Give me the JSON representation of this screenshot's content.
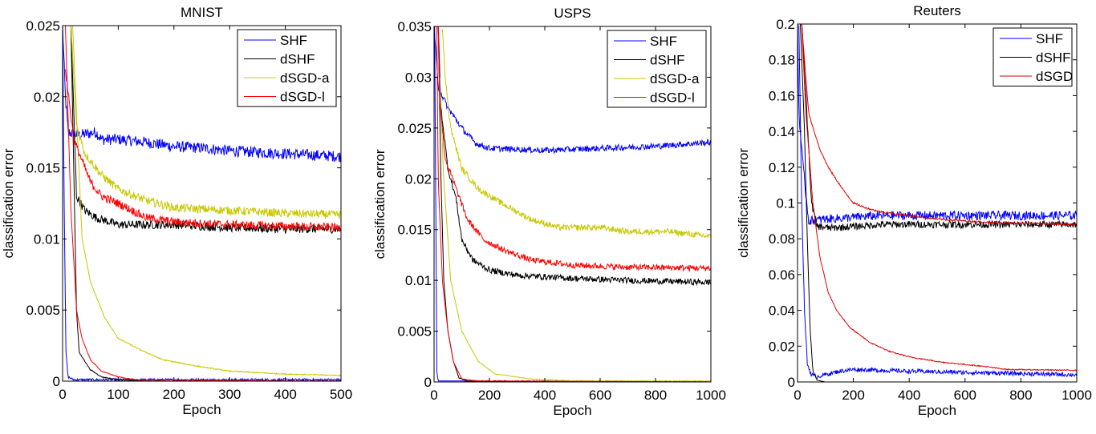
{
  "chart_data": [
    {
      "type": "line",
      "title": "MNIST",
      "xlabel": "Epoch",
      "ylabel": "classification error",
      "xlim": [
        0,
        500
      ],
      "ylim": [
        0,
        0.025
      ],
      "xticks": [
        0,
        100,
        200,
        300,
        400,
        500
      ],
      "xtick_labels": [
        "0",
        "100",
        "200",
        "300",
        "400",
        "500"
      ],
      "yticks": [
        0,
        0.005,
        0.01,
        0.015,
        0.02,
        0.025
      ],
      "ytick_labels": [
        "0",
        "0.005",
        "0.01",
        "0.015",
        "0.02",
        "0.025"
      ],
      "legend_position": "top-right",
      "series": [
        {
          "name": "SHF",
          "color": "#0000ff",
          "curves": [
            {
              "kind": "test",
              "noise": 0.0004,
              "x": [
                0,
                5,
                10,
                30,
                60,
                70,
                100,
                150,
                200,
                250,
                300,
                400,
                500
              ],
              "y": [
                0.025,
                0.02,
                0.0175,
                0.0173,
                0.0175,
                0.017,
                0.017,
                0.0168,
                0.0165,
                0.0164,
                0.0162,
                0.016,
                0.0158
              ]
            },
            {
              "kind": "train",
              "noise": 8e-05,
              "x": [
                0,
                3,
                6,
                10,
                20,
                500
              ],
              "y": [
                0.025,
                0.012,
                0.002,
                0.0003,
                0.0001,
                0.0001
              ]
            }
          ]
        },
        {
          "name": "dSHF",
          "color": "#000000",
          "curves": [
            {
              "kind": "test",
              "noise": 0.0003,
              "x": [
                15,
                25,
                40,
                60,
                100,
                200,
                300,
                400,
                500
              ],
              "y": [
                0.025,
                0.013,
                0.012,
                0.0115,
                0.011,
                0.011,
                0.0108,
                0.0107,
                0.0107
              ]
            },
            {
              "kind": "train",
              "noise": 3e-05,
              "x": [
                15,
                25,
                30,
                50,
                70,
                100,
                150,
                500
              ],
              "y": [
                0.025,
                0.005,
                0.002,
                0.0008,
                0.0003,
                0.0001,
                0.0,
                0.0
              ]
            }
          ]
        },
        {
          "name": "dSGD-a",
          "color": "#c8c800",
          "curves": [
            {
              "kind": "test",
              "noise": 0.0003,
              "x": [
                15,
                25,
                40,
                70,
                100,
                150,
                200,
                300,
                400,
                500
              ],
              "y": [
                0.025,
                0.018,
                0.016,
                0.0145,
                0.0135,
                0.0127,
                0.0122,
                0.012,
                0.0118,
                0.0117
              ]
            },
            {
              "kind": "train",
              "noise": 4e-05,
              "x": [
                18,
                35,
                50,
                75,
                100,
                140,
                180,
                250,
                300,
                400,
                500
              ],
              "y": [
                0.025,
                0.01,
                0.007,
                0.0045,
                0.003,
                0.0022,
                0.0015,
                0.001,
                0.0007,
                0.0005,
                0.0004
              ]
            }
          ]
        },
        {
          "name": "dSGD-l",
          "color": "#ff0000",
          "curves": [
            {
              "kind": "test",
              "noise": 0.0003,
              "x": [
                5,
                20,
                35,
                50,
                70,
                100,
                150,
                200,
                300,
                400,
                500
              ],
              "y": [
                0.022,
                0.017,
                0.0155,
                0.014,
                0.013,
                0.0125,
                0.0115,
                0.0112,
                0.011,
                0.0109,
                0.0108
              ]
            },
            {
              "kind": "train",
              "noise": 3e-05,
              "x": [
                5,
                15,
                25,
                35,
                50,
                70,
                100,
                130,
                500
              ],
              "y": [
                0.025,
                0.012,
                0.005,
                0.003,
                0.0015,
                0.0007,
                0.0003,
                0.0001,
                0.0
              ]
            }
          ]
        }
      ]
    },
    {
      "type": "line",
      "title": "USPS",
      "xlabel": "Epoch",
      "ylabel": "classification error",
      "xlim": [
        0,
        1000
      ],
      "ylim": [
        0,
        0.035
      ],
      "xticks": [
        0,
        200,
        400,
        600,
        800,
        1000
      ],
      "xtick_labels": [
        "0",
        "200",
        "400",
        "600",
        "800",
        "1000"
      ],
      "yticks": [
        0,
        0.005,
        0.01,
        0.015,
        0.02,
        0.025,
        0.03,
        0.035
      ],
      "ytick_labels": [
        "0",
        "0.005",
        "0.01",
        "0.015",
        "0.02",
        "0.025",
        "0.03",
        "0.035"
      ],
      "legend_position": "top-right",
      "series": [
        {
          "name": "SHF",
          "color": "#0000ff",
          "curves": [
            {
              "kind": "test",
              "noise": 0.0003,
              "x": [
                0,
                15,
                50,
                100,
                150,
                200,
                400,
                600,
                800,
                1000
              ],
              "y": [
                0.035,
                0.029,
                0.027,
                0.025,
                0.0235,
                0.023,
                0.0228,
                0.023,
                0.0232,
                0.0236
              ]
            },
            {
              "kind": "train",
              "noise": 0.0,
              "x": [
                2,
                10,
                15,
                1000
              ],
              "y": [
                0.035,
                0.001,
                0.0001,
                0.0
              ]
            }
          ]
        },
        {
          "name": "dSHF",
          "color": "#000000",
          "curves": [
            {
              "kind": "test",
              "noise": 0.0003,
              "x": [
                15,
                25,
                50,
                80,
                100,
                140,
                200,
                300,
                500,
                700,
                1000
              ],
              "y": [
                0.035,
                0.027,
                0.021,
                0.018,
                0.014,
                0.012,
                0.011,
                0.0105,
                0.0102,
                0.01,
                0.0098
              ]
            },
            {
              "kind": "train",
              "noise": 5e-05,
              "x": [
                15,
                25,
                35,
                50,
                70,
                90,
                120,
                1000
              ],
              "y": [
                0.035,
                0.02,
                0.01,
                0.005,
                0.002,
                0.0004,
                0.0001,
                0.0
              ]
            }
          ]
        },
        {
          "name": "dSGD-a",
          "color": "#c8c800",
          "curves": [
            {
              "kind": "test",
              "noise": 0.0003,
              "x": [
                30,
                40,
                60,
                100,
                160,
                250,
                350,
                450,
                600,
                700,
                850,
                1000
              ],
              "y": [
                0.035,
                0.03,
                0.025,
                0.021,
                0.019,
                0.0175,
                0.016,
                0.0152,
                0.0152,
                0.0148,
                0.0148,
                0.0143
              ]
            },
            {
              "kind": "train",
              "noise": 3e-05,
              "x": [
                20,
                35,
                60,
                100,
                160,
                220,
                350,
                500,
                1000
              ],
              "y": [
                0.03,
                0.02,
                0.01,
                0.005,
                0.002,
                0.0008,
                0.0003,
                0.0001,
                0.0001
              ]
            }
          ]
        },
        {
          "name": "dSGD-l",
          "color": "#ff0000",
          "curves": [
            {
              "kind": "test",
              "noise": 0.0003,
              "x": [
                15,
                20,
                40,
                80,
                120,
                180,
                250,
                350,
                500,
                700,
                1000
              ],
              "y": [
                0.035,
                0.028,
                0.022,
                0.019,
                0.016,
                0.014,
                0.013,
                0.012,
                0.0115,
                0.0113,
                0.0112
              ]
            },
            {
              "kind": "train",
              "noise": 3e-05,
              "x": [
                10,
                15,
                30,
                50,
                70,
                100,
                150,
                1000
              ],
              "y": [
                0.035,
                0.02,
                0.01,
                0.005,
                0.002,
                0.0003,
                0.0001,
                0.0
              ]
            }
          ]
        }
      ]
    },
    {
      "type": "line",
      "title": "Reuters",
      "xlabel": "Epoch",
      "ylabel": "classification error",
      "xlim": [
        0,
        1000
      ],
      "ylim": [
        0,
        0.2
      ],
      "xticks": [
        0,
        200,
        400,
        600,
        800,
        1000
      ],
      "xtick_labels": [
        "0",
        "200",
        "400",
        "600",
        "800",
        "1000"
      ],
      "yticks": [
        0,
        0.02,
        0.04,
        0.06,
        0.08,
        0.1,
        0.12,
        0.14,
        0.16,
        0.18,
        0.2
      ],
      "ytick_labels": [
        "0",
        "0.02",
        "0.04",
        "0.06",
        "0.08",
        "0.1",
        "0.12",
        "0.14",
        "0.16",
        "0.18",
        "0.2"
      ],
      "legend_position": "top-right",
      "series": [
        {
          "name": "SHF",
          "color": "#0000ff",
          "curves": [
            {
              "kind": "test",
              "noise": 0.0025,
              "x": [
                0,
                5,
                20,
                40,
                100,
                300,
                600,
                1000
              ],
              "y": [
                0.2,
                0.15,
                0.12,
                0.09,
                0.091,
                0.093,
                0.093,
                0.093
              ]
            },
            {
              "kind": "train",
              "noise": 0.0012,
              "x": [
                5,
                15,
                25,
                35,
                50,
                70,
                150,
                200,
                400,
                700,
                1000
              ],
              "y": [
                0.2,
                0.1,
                0.04,
                0.01,
                0.004,
                0.003,
                0.006,
                0.007,
                0.006,
                0.005,
                0.004
              ]
            }
          ]
        },
        {
          "name": "dSHF",
          "color": "#000000",
          "curves": [
            {
              "kind": "test",
              "noise": 0.002,
              "x": [
                15,
                30,
                50,
                70,
                120,
                300,
                1000
              ],
              "y": [
                0.2,
                0.16,
                0.1,
                0.087,
                0.086,
                0.088,
                0.088
              ]
            },
            {
              "kind": "train",
              "noise": 0.0,
              "x": [
                10,
                25,
                35,
                45,
                55,
                70,
                100,
                1000
              ],
              "y": [
                0.2,
                0.14,
                0.08,
                0.03,
                0.006,
                0.001,
                0.0,
                0.0
              ]
            }
          ]
        },
        {
          "name": "dSGD",
          "color": "#e00000",
          "curves": [
            {
              "kind": "test",
              "noise": 0.0005,
              "x": [
                15,
                40,
                80,
                110,
                160,
                200,
                250,
                300,
                400,
                500,
                700,
                1000
              ],
              "y": [
                0.2,
                0.15,
                0.13,
                0.12,
                0.108,
                0.1,
                0.097,
                0.095,
                0.093,
                0.091,
                0.089,
                0.088
              ]
            },
            {
              "kind": "train",
              "noise": 0.0003,
              "x": [
                15,
                30,
                55,
                80,
                110,
                140,
                190,
                260,
                330,
                400,
                520,
                650,
                750,
                1000
              ],
              "y": [
                0.2,
                0.15,
                0.1,
                0.07,
                0.05,
                0.04,
                0.03,
                0.022,
                0.017,
                0.014,
                0.011,
                0.009,
                0.007,
                0.0065
              ]
            }
          ]
        }
      ]
    }
  ]
}
